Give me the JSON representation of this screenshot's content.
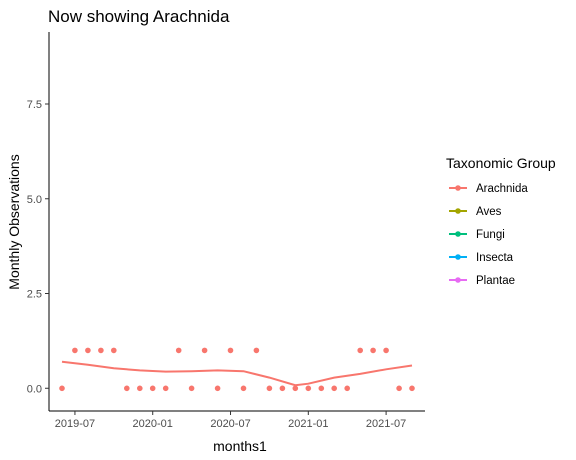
{
  "chart_data": {
    "type": "scatter",
    "title": "Now showing Arachnida",
    "xlabel": "months1",
    "ylabel": "Monthly Observations",
    "x_ticks": [
      "2019-07",
      "2020-01",
      "2020-07",
      "2021-01",
      "2021-07"
    ],
    "y_ticks": [
      "0.0",
      "2.5",
      "5.0",
      "7.5"
    ],
    "y_tick_values": [
      0,
      2.5,
      5,
      7.5
    ],
    "ylim": [
      -0.6,
      9.4
    ],
    "xlim": [
      "2019-05-01",
      "2021-10-01"
    ],
    "grid": false,
    "legend": {
      "title": "Taxonomic Group",
      "placement": "right",
      "entries": [
        {
          "name": "Arachnida",
          "color": "#F8766D"
        },
        {
          "name": "Aves",
          "color": "#A3A500"
        },
        {
          "name": "Fungi",
          "color": "#00BF7D"
        },
        {
          "name": "Insecta",
          "color": "#00B0F6"
        },
        {
          "name": "Plantae",
          "color": "#E76BF3"
        }
      ]
    },
    "series": [
      {
        "name": "Arachnida",
        "color": "#F8766D",
        "points": [
          {
            "x": "2019-06",
            "y": 0
          },
          {
            "x": "2019-07",
            "y": 1
          },
          {
            "x": "2019-08",
            "y": 1
          },
          {
            "x": "2019-09",
            "y": 1
          },
          {
            "x": "2019-10",
            "y": 1
          },
          {
            "x": "2019-11",
            "y": 0
          },
          {
            "x": "2019-12",
            "y": 0
          },
          {
            "x": "2020-01",
            "y": 0
          },
          {
            "x": "2020-02",
            "y": 0
          },
          {
            "x": "2020-03",
            "y": 1
          },
          {
            "x": "2020-04",
            "y": 0
          },
          {
            "x": "2020-05",
            "y": 1
          },
          {
            "x": "2020-06",
            "y": 0
          },
          {
            "x": "2020-07",
            "y": 1
          },
          {
            "x": "2020-08",
            "y": 0
          },
          {
            "x": "2020-09",
            "y": 1
          },
          {
            "x": "2020-10",
            "y": 0
          },
          {
            "x": "2020-11",
            "y": 0
          },
          {
            "x": "2020-12",
            "y": 0
          },
          {
            "x": "2021-01",
            "y": 0
          },
          {
            "x": "2021-02",
            "y": 0
          },
          {
            "x": "2021-03",
            "y": 0
          },
          {
            "x": "2021-04",
            "y": 0
          },
          {
            "x": "2021-05",
            "y": 1
          },
          {
            "x": "2021-06",
            "y": 1
          },
          {
            "x": "2021-07",
            "y": 1
          },
          {
            "x": "2021-08",
            "y": 0
          },
          {
            "x": "2021-09",
            "y": 0
          }
        ],
        "smooth": [
          {
            "x": "2019-06",
            "y": 0.7
          },
          {
            "x": "2019-08",
            "y": 0.62
          },
          {
            "x": "2019-10",
            "y": 0.53
          },
          {
            "x": "2019-12",
            "y": 0.47
          },
          {
            "x": "2020-02",
            "y": 0.44
          },
          {
            "x": "2020-04",
            "y": 0.45
          },
          {
            "x": "2020-06",
            "y": 0.47
          },
          {
            "x": "2020-08",
            "y": 0.45
          },
          {
            "x": "2020-10",
            "y": 0.28
          },
          {
            "x": "2020-12",
            "y": 0.08
          },
          {
            "x": "2021-01",
            "y": 0.12
          },
          {
            "x": "2021-03",
            "y": 0.28
          },
          {
            "x": "2021-05",
            "y": 0.38
          },
          {
            "x": "2021-07",
            "y": 0.5
          },
          {
            "x": "2021-09",
            "y": 0.6
          }
        ]
      }
    ]
  }
}
